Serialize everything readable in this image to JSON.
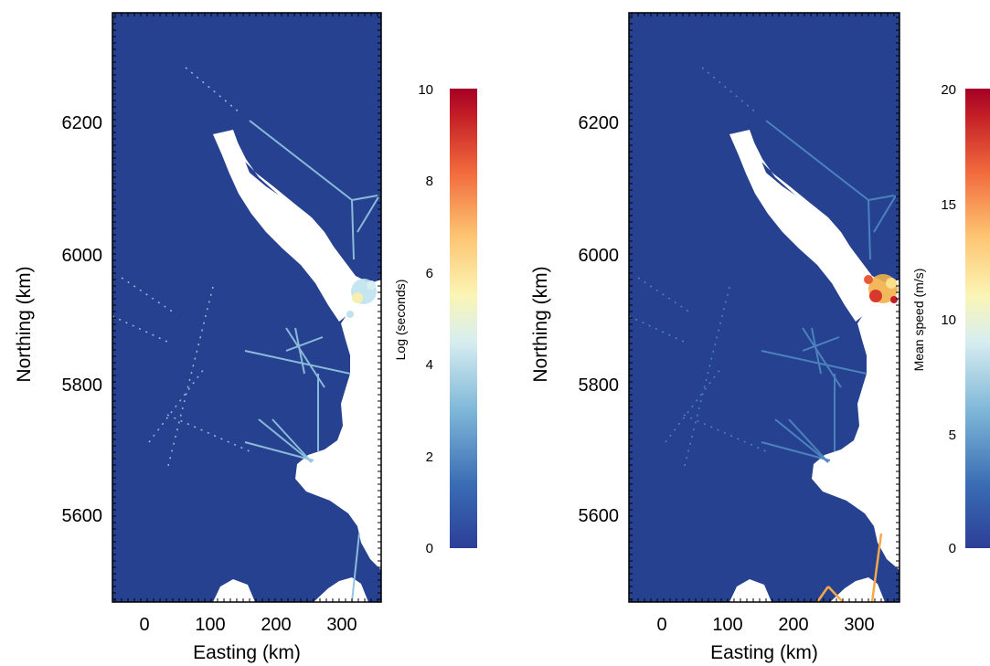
{
  "panels": [
    {
      "id": "left",
      "xlabel": "Easting (km)",
      "ylabel": "Northing (km)",
      "x_ticks": [
        "0",
        "100",
        "200",
        "300"
      ],
      "y_ticks": [
        "5600",
        "5800",
        "6000",
        "6200"
      ],
      "colorbar": {
        "title": "Log (seconds)",
        "ticks": [
          "0",
          "2",
          "4",
          "6",
          "8",
          "10"
        ]
      },
      "background_color": "#26418f"
    },
    {
      "id": "right",
      "xlabel": "Easting (km)",
      "ylabel": "Northing (km)",
      "x_ticks": [
        "0",
        "100",
        "200",
        "300"
      ],
      "y_ticks": [
        "5600",
        "5800",
        "6000",
        "6200"
      ],
      "colorbar": {
        "title": "Mean speed (m/s)",
        "ticks": [
          "0",
          "5",
          "10",
          "15",
          "20"
        ]
      },
      "background_color": "#26418f"
    }
  ],
  "map_extent": {
    "easting_range_km": [
      -50,
      355
    ],
    "northing_range_km": [
      5470,
      6355
    ]
  },
  "colormap": [
    "#2c3f97",
    "#3a6db4",
    "#7fb7d8",
    "#d7eef0",
    "#fbf5b5",
    "#fdc471",
    "#f1693c",
    "#c41f26",
    "#a50026"
  ]
}
